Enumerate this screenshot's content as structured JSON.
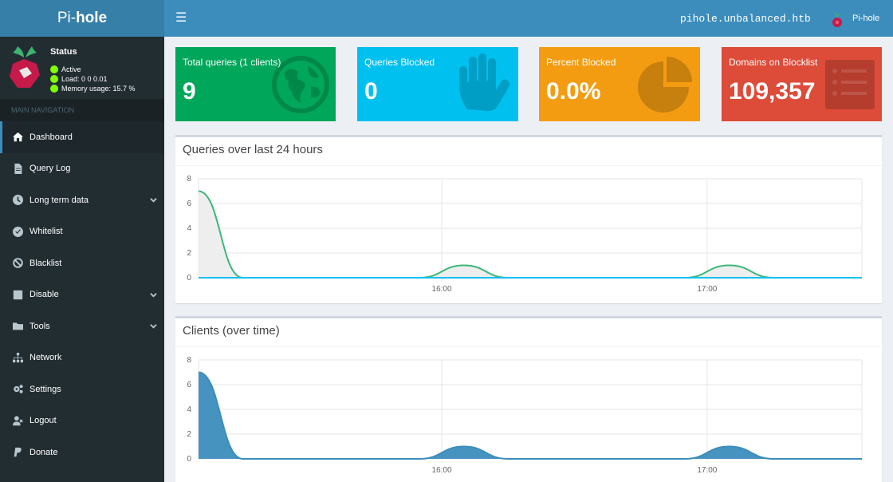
{
  "app": {
    "logo_light": "Pi-",
    "logo_bold": "hole"
  },
  "topbar": {
    "menu_icon": "☰",
    "hostname": "pihole.unbalanced.htb",
    "user": "Pi-hole"
  },
  "status": {
    "title": "Status",
    "active": "Active",
    "load": "Load:  0  0  0.01",
    "memory": "Memory usage:  15.7 %",
    "indicator_color": "#7fff00"
  },
  "nav": {
    "header": "MAIN NAVIGATION",
    "items": [
      {
        "label": "Dashboard",
        "icon": "home-icon"
      },
      {
        "label": "Query Log",
        "icon": "file-icon"
      },
      {
        "label": "Long term data",
        "icon": "clock-icon"
      },
      {
        "label": "Whitelist",
        "icon": "check-circle-icon"
      },
      {
        "label": "Blacklist",
        "icon": "ban-icon"
      },
      {
        "label": "Disable",
        "icon": "stop-icon"
      },
      {
        "label": "Tools",
        "icon": "folder-icon"
      },
      {
        "label": "Network",
        "icon": "network-icon"
      },
      {
        "label": "Settings",
        "icon": "gears-icon"
      },
      {
        "label": "Logout",
        "icon": "user-times-icon"
      },
      {
        "label": "Donate",
        "icon": "paypal-icon"
      }
    ]
  },
  "stats": [
    {
      "label": "Total queries (1 clients)",
      "value": "9",
      "color": "#00a65a",
      "icon": "globe-icon"
    },
    {
      "label": "Queries Blocked",
      "value": "0",
      "color": "#00c0ef",
      "icon": "hand-icon"
    },
    {
      "label": "Percent Blocked",
      "value": "0.0%",
      "color": "#f39c12",
      "icon": "pie-chart-icon"
    },
    {
      "label": "Domains on Blocklist",
      "value": "109,357",
      "color": "#dd4b39",
      "icon": "list-icon"
    }
  ],
  "chart_data": [
    {
      "type": "area",
      "title": "Queries over last 24 hours",
      "xlabels": [
        "16:00",
        "17:00"
      ],
      "yticks": [
        0,
        2,
        4,
        6,
        8
      ],
      "ylim": [
        0,
        8
      ],
      "x": [
        "15:05",
        "15:15",
        "15:25",
        "15:35",
        "15:45",
        "15:55",
        "16:05",
        "16:15",
        "16:25",
        "16:35",
        "16:45",
        "16:55",
        "17:05",
        "17:15",
        "17:25",
        "17:35"
      ],
      "series": [
        {
          "values": [
            7,
            0,
            0,
            0,
            0,
            0,
            1,
            0,
            0,
            0,
            0,
            0,
            1,
            0,
            0,
            0
          ],
          "color": "#3cb878",
          "fill": "#eeeeee"
        },
        {
          "values": [
            0,
            0,
            0,
            0,
            0,
            0,
            0,
            0,
            0,
            0,
            0,
            0,
            0,
            0,
            0,
            0
          ],
          "color": "#00c0ef"
        }
      ],
      "grid": true
    },
    {
      "type": "area",
      "title": "Clients (over time)",
      "xlabels": [
        "16:00",
        "17:00"
      ],
      "yticks": [
        0,
        2,
        4,
        6,
        8
      ],
      "ylim": [
        0,
        8
      ],
      "x": [
        "15:05",
        "15:15",
        "15:25",
        "15:35",
        "15:45",
        "15:55",
        "16:05",
        "16:15",
        "16:25",
        "16:35",
        "16:45",
        "16:55",
        "17:05",
        "17:15",
        "17:25",
        "17:35"
      ],
      "series": [
        {
          "values": [
            7,
            0,
            0,
            0,
            0,
            0,
            1,
            0,
            0,
            0,
            0,
            0,
            1,
            0,
            0,
            0
          ],
          "color": "#3c8dbc",
          "fill": "#3c8dbc"
        }
      ],
      "grid": true
    }
  ]
}
